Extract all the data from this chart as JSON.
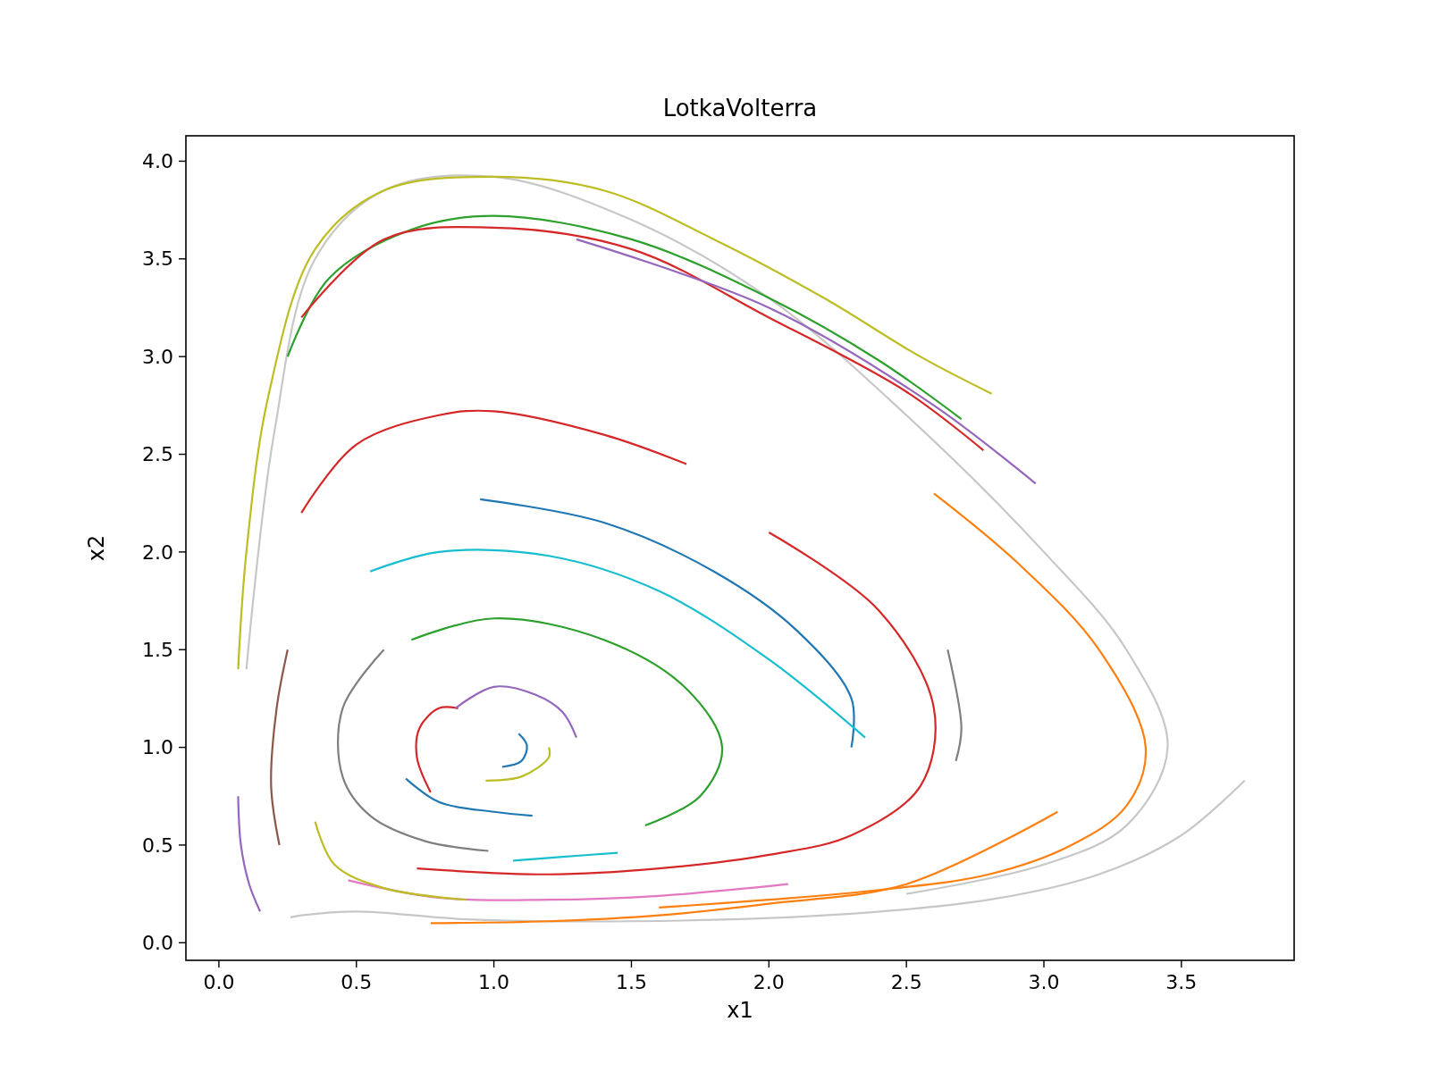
{
  "chart_data": {
    "type": "line",
    "title": "LotkaVolterra",
    "xlabel": "x1",
    "ylabel": "x2",
    "xlim": [
      -0.12,
      3.91
    ],
    "ylim": [
      -0.09,
      4.13
    ],
    "xticks": [
      {
        "value": 0,
        "label": "0.0"
      },
      {
        "value": 0.5,
        "label": "0.5"
      },
      {
        "value": 1,
        "label": "1.0"
      },
      {
        "value": 1.5,
        "label": "1.5"
      },
      {
        "value": 2,
        "label": "2.0"
      },
      {
        "value": 2.5,
        "label": "2.5"
      },
      {
        "value": 3,
        "label": "3.0"
      },
      {
        "value": 3.5,
        "label": "3.5"
      }
    ],
    "yticks": [
      {
        "value": 0,
        "label": "0.0"
      },
      {
        "value": 0.5,
        "label": "0.5"
      },
      {
        "value": 1,
        "label": "1.0"
      },
      {
        "value": 1.5,
        "label": "1.5"
      },
      {
        "value": 2,
        "label": "2.0"
      },
      {
        "value": 2.5,
        "label": "2.5"
      },
      {
        "value": 3,
        "label": "3.0"
      },
      {
        "value": 3.5,
        "label": "3.5"
      },
      {
        "value": 4,
        "label": "4.0"
      }
    ],
    "grid": false,
    "marker": "none",
    "line_style": "solid",
    "series": [
      {
        "color": "#c7c7c7",
        "x": [
          3.73,
          3.5,
          3.2,
          2.8,
          2.2,
          1.5,
          0.9,
          0.5,
          0.3,
          0.26
        ],
        "values": [
          0.83,
          0.55,
          0.35,
          0.22,
          0.14,
          0.11,
          0.12,
          0.16,
          0.14,
          0.13
        ]
      },
      {
        "color": "#c7c7c7",
        "x": [
          0.1,
          0.2,
          0.35,
          0.6,
          1.0,
          1.5,
          2.0,
          2.5,
          3.0,
          3.3,
          3.45,
          3.3,
          3.0,
          2.5
        ],
        "values": [
          1.4,
          2.6,
          3.5,
          3.85,
          3.92,
          3.7,
          3.3,
          2.7,
          2.0,
          1.5,
          1.0,
          0.6,
          0.4,
          0.25
        ]
      },
      {
        "color": "#bcbd22",
        "x": [
          0.07,
          0.1,
          0.18,
          0.35,
          0.6,
          1.0,
          1.4,
          1.8,
          2.2,
          2.55,
          2.81
        ],
        "values": [
          1.4,
          2.0,
          2.8,
          3.55,
          3.85,
          3.92,
          3.85,
          3.6,
          3.3,
          3.0,
          2.81
        ]
      },
      {
        "color": "#ff7f0e",
        "x": [
          2.6,
          2.9,
          3.2,
          3.37,
          3.3,
          3.1,
          2.8,
          2.4,
          2.0,
          1.6
        ],
        "values": [
          2.3,
          1.95,
          1.5,
          1.0,
          0.7,
          0.5,
          0.35,
          0.27,
          0.22,
          0.18
        ]
      },
      {
        "color": "#ff7f0e",
        "x": [
          0.77,
          1.2,
          1.6,
          2.0,
          2.5,
          3.05
        ],
        "values": [
          0.1,
          0.11,
          0.14,
          0.2,
          0.3,
          0.67
        ]
      },
      {
        "color": "#2ca02c",
        "x": [
          0.25,
          0.4,
          0.7,
          1.0,
          1.5,
          2.0,
          2.4,
          2.7
        ],
        "values": [
          3.0,
          3.4,
          3.65,
          3.72,
          3.6,
          3.3,
          2.98,
          2.68
        ]
      },
      {
        "color": "#d62728",
        "x": [
          0.3,
          0.6,
          1.0,
          1.5,
          2.0,
          2.5,
          2.78
        ],
        "values": [
          3.2,
          3.6,
          3.66,
          3.55,
          3.2,
          2.82,
          2.52
        ]
      },
      {
        "color": "#9467bd",
        "x": [
          1.3,
          2.0,
          2.6,
          2.97
        ],
        "values": [
          3.6,
          3.25,
          2.75,
          2.35
        ]
      },
      {
        "color": "#1f77b4",
        "x": [
          0.95,
          1.4,
          1.8,
          2.1,
          2.3,
          2.3
        ],
        "values": [
          2.27,
          2.15,
          1.9,
          1.6,
          1.25,
          1.0
        ]
      },
      {
        "color": "#1f77b4",
        "x": [
          0.68,
          0.8,
          1.0,
          1.14
        ],
        "values": [
          0.84,
          0.72,
          0.67,
          0.65
        ]
      },
      {
        "color": "#1f77b4",
        "x": [
          1.03,
          1.1,
          1.12,
          1.09
        ],
        "values": [
          0.9,
          0.93,
          1.01,
          1.07
        ]
      },
      {
        "color": "#d62728",
        "x": [
          0.77,
          0.72,
          0.73,
          0.8,
          0.87
        ],
        "values": [
          0.77,
          0.95,
          1.1,
          1.2,
          1.2
        ]
      },
      {
        "color": "#9467bd",
        "x": [
          0.86,
          1.0,
          1.15,
          1.25,
          1.3
        ],
        "values": [
          1.2,
          1.31,
          1.27,
          1.18,
          1.05
        ]
      },
      {
        "color": "#bcbd22",
        "x": [
          0.97,
          1.1,
          1.2,
          1.2
        ],
        "values": [
          0.83,
          0.85,
          0.95,
          1.0
        ]
      },
      {
        "color": "#7f7f7f",
        "x": [
          0.6,
          0.45,
          0.45,
          0.55,
          0.75,
          0.98
        ],
        "values": [
          1.5,
          1.2,
          0.85,
          0.65,
          0.52,
          0.47
        ]
      },
      {
        "color": "#7f7f7f",
        "x": [
          2.65,
          2.7,
          2.68
        ],
        "values": [
          1.5,
          1.1,
          0.93
        ]
      },
      {
        "color": "#17becf",
        "x": [
          0.55,
          0.8,
          1.2,
          1.6,
          2.0,
          2.35
        ],
        "values": [
          1.9,
          2.0,
          1.98,
          1.8,
          1.45,
          1.05
        ]
      },
      {
        "color": "#e377c2",
        "x": [
          0.47,
          0.8,
          1.2,
          1.6,
          2.07
        ],
        "values": [
          0.32,
          0.23,
          0.22,
          0.24,
          0.3
        ]
      },
      {
        "color": "#8c564b",
        "x": [
          0.22,
          0.19,
          0.21,
          0.25
        ],
        "values": [
          0.5,
          0.8,
          1.2,
          1.5
        ]
      },
      {
        "color": "#2ca02c",
        "x": [
          0.7,
          1.0,
          1.4,
          1.7,
          1.83,
          1.75,
          1.55
        ],
        "values": [
          1.55,
          1.66,
          1.55,
          1.3,
          1.0,
          0.75,
          0.6
        ]
      },
      {
        "color": "#d62728",
        "x": [
          0.3,
          0.5,
          0.8,
          1.0,
          1.4,
          1.7
        ],
        "values": [
          2.2,
          2.55,
          2.7,
          2.72,
          2.6,
          2.45
        ]
      },
      {
        "color": "#d62728",
        "x": [
          2.0,
          2.4,
          2.6,
          2.55,
          2.3,
          2.0,
          1.6,
          1.2,
          0.72
        ],
        "values": [
          2.1,
          1.7,
          1.2,
          0.8,
          0.55,
          0.45,
          0.38,
          0.35,
          0.38
        ]
      },
      {
        "color": "#bcbd22",
        "x": [
          0.35,
          0.42,
          0.6,
          0.9
        ],
        "values": [
          0.62,
          0.4,
          0.28,
          0.22
        ]
      },
      {
        "color": "#17becf",
        "x": [
          1.07,
          1.25,
          1.45
        ],
        "values": [
          0.42,
          0.44,
          0.46
        ]
      },
      {
        "color": "#9467bd",
        "x": [
          0.07,
          0.08,
          0.11,
          0.15
        ],
        "values": [
          0.75,
          0.5,
          0.3,
          0.16
        ]
      }
    ]
  }
}
